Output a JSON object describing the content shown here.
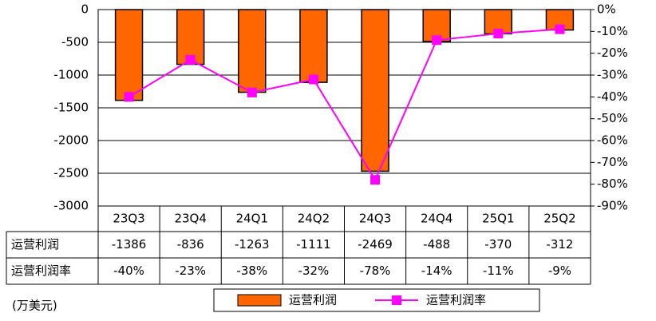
{
  "chart_data": {
    "type": "bar",
    "unit_label": "(万美元)",
    "categories": [
      "23Q3",
      "23Q4",
      "24Q1",
      "24Q2",
      "24Q3",
      "24Q4",
      "25Q1",
      "25Q2"
    ],
    "series": [
      {
        "name": "运营利润",
        "type": "bar",
        "color": "#ff6600",
        "values": [
          -1386,
          -836,
          -1263,
          -1111,
          -2469,
          -488,
          -370,
          -312
        ]
      },
      {
        "name": "运营利润率",
        "type": "line",
        "axis": "y2",
        "color": "#ff00ff",
        "values": [
          -40,
          -23,
          -38,
          -32,
          -78,
          -14,
          -11,
          -9
        ],
        "value_labels": [
          "-40%",
          "-23%",
          "-38%",
          "-32%",
          "-78%",
          "-14%",
          "-11%",
          "-9%"
        ]
      }
    ],
    "ylim": [
      -3000,
      0
    ],
    "yticks": [
      0,
      -500,
      -1000,
      -1500,
      -2000,
      -2500,
      -3000
    ],
    "y2lim": [
      -90,
      0
    ],
    "y2ticks": [
      {
        "value": 0,
        "label": "0%"
      },
      {
        "value": -10,
        "label": "-10%"
      },
      {
        "value": -20,
        "label": "-20%"
      },
      {
        "value": -30,
        "label": "-30%"
      },
      {
        "value": -40,
        "label": "-40%"
      },
      {
        "value": -50,
        "label": "-50%"
      },
      {
        "value": -60,
        "label": "-60%"
      },
      {
        "value": -70,
        "label": "-70%"
      },
      {
        "value": -80,
        "label": "-80%"
      },
      {
        "value": -90,
        "label": "-90%"
      }
    ],
    "grid": true
  }
}
